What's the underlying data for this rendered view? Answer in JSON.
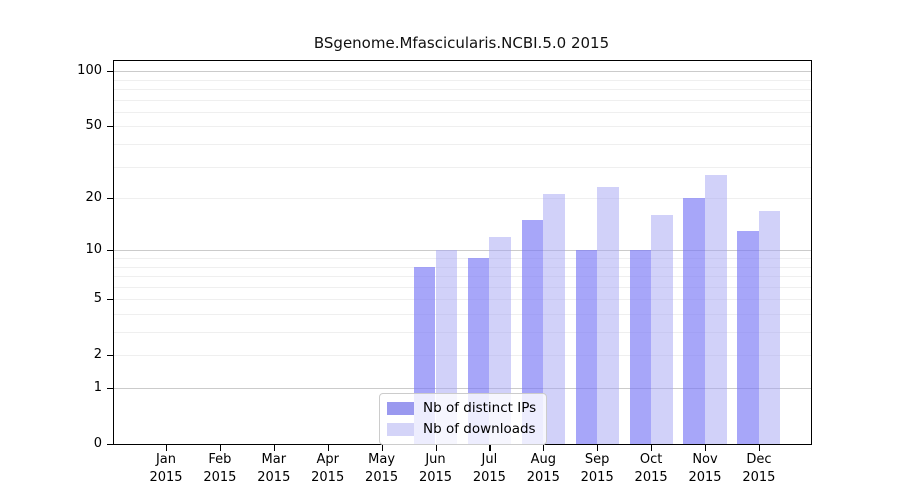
{
  "title": "BSgenome.Mfascicularis.NCBI.5.0 2015",
  "legend": {
    "items": [
      {
        "label": "Nb of distinct IPs",
        "swatch_color": "#9a99ef"
      },
      {
        "label": "Nb of downloads",
        "swatch_color": "#d4d4f8"
      }
    ]
  },
  "y_axis": {
    "tick_values": [
      100,
      50,
      20,
      10,
      5,
      2,
      1,
      0
    ],
    "tick_labels": [
      "100",
      "50",
      "20",
      "10",
      "5",
      "2",
      "1",
      "0"
    ],
    "major_grid_values": [
      1,
      10,
      100
    ],
    "minor_grid_values": [
      2,
      3,
      4,
      5,
      6,
      7,
      8,
      9,
      20,
      30,
      40,
      50,
      60,
      70,
      80,
      90
    ]
  },
  "x_axis": {
    "months": [
      "Jan",
      "Feb",
      "Mar",
      "Apr",
      "May",
      "Jun",
      "Jul",
      "Aug",
      "Sep",
      "Oct",
      "Nov",
      "Dec"
    ],
    "year": "2015"
  },
  "chart_data": {
    "type": "bar",
    "title": "BSgenome.Mfascicularis.NCBI.5.0 2015",
    "categories": [
      "Jan 2015",
      "Feb 2015",
      "Mar 2015",
      "Apr 2015",
      "May 2015",
      "Jun 2015",
      "Jul 2015",
      "Aug 2015",
      "Sep 2015",
      "Oct 2015",
      "Nov 2015",
      "Dec 2015"
    ],
    "series": [
      {
        "name": "Nb of distinct IPs",
        "color": "rgba(122,120,246,0.66)",
        "values": [
          0,
          0,
          0,
          0,
          0,
          8,
          9,
          15,
          10,
          10,
          20,
          13
        ]
      },
      {
        "name": "Nb of downloads",
        "color": "rgba(164,164,243,0.50)",
        "values": [
          0,
          0,
          0,
          0,
          0,
          10,
          12,
          21,
          23,
          16,
          27,
          17
        ]
      }
    ],
    "yscale": "log1p",
    "yticks": [
      0,
      1,
      2,
      5,
      10,
      20,
      50,
      100
    ],
    "ylim": [
      0,
      113
    ],
    "grid": true,
    "legend_position": "lower center"
  }
}
